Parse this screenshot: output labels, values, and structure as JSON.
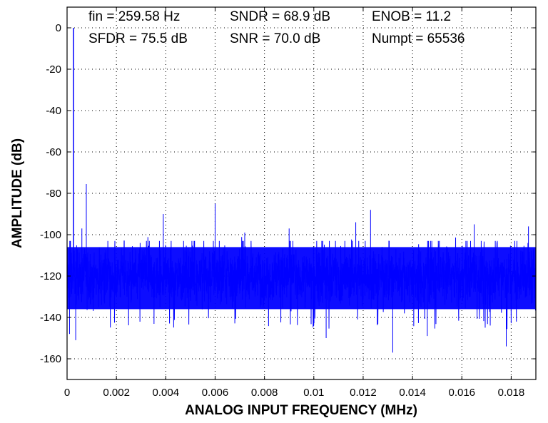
{
  "chart_data": {
    "type": "line",
    "xlabel": "ANALOG INPUT FREQUENCY (MHz)",
    "ylabel": "AMPLITUDE (dB)",
    "xlim": [
      0,
      0.019
    ],
    "ylim": [
      -170,
      10
    ],
    "x_ticks": [
      "0",
      "0.002",
      "0.004",
      "0.006",
      "0.008",
      "0.01",
      "0.012",
      "0.014",
      "0.016",
      "0.018"
    ],
    "y_ticks": [
      "0",
      "-20",
      "-40",
      "-60",
      "-80",
      "-100",
      "-120",
      "-140",
      "-160"
    ],
    "grid": true,
    "series_color": "#0000ff",
    "noise_floor": {
      "min_db": -140,
      "max_db": -103,
      "center_db": -120
    },
    "fundamental": {
      "x": 0.000259,
      "y": 0
    },
    "spurs": [
      {
        "x": 0.00078,
        "y": -75.5
      },
      {
        "x": 0.0006,
        "y": -97
      },
      {
        "x": 0.0039,
        "y": -90
      },
      {
        "x": 0.006,
        "y": -85
      },
      {
        "x": 0.0072,
        "y": -99
      },
      {
        "x": 0.009,
        "y": -97
      },
      {
        "x": 0.0123,
        "y": -88
      },
      {
        "x": 0.0117,
        "y": -94
      },
      {
        "x": 0.0165,
        "y": -95
      },
      {
        "x": 0.0187,
        "y": -96
      }
    ],
    "dips": [
      {
        "x": 0.0001,
        "y": -148
      },
      {
        "x": 0.00035,
        "y": -151
      },
      {
        "x": 0.0105,
        "y": -150
      },
      {
        "x": 0.0132,
        "y": -157
      },
      {
        "x": 0.0178,
        "y": -154
      },
      {
        "x": 0.0146,
        "y": -149
      }
    ],
    "annotations": [
      "fin = 259.58 Hz",
      "SNDR = 68.9 dB",
      "ENOB = 11.2",
      "SFDR = 75.5 dB",
      "SNR = 70.0 dB",
      "Numpt = 65536"
    ]
  }
}
